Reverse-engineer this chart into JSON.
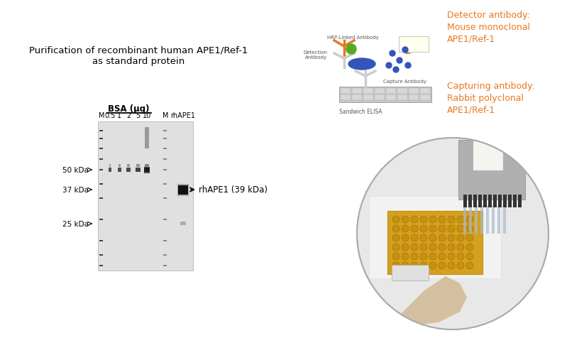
{
  "title_left": "Purification of recombinant human APE1/Ref-1\nas standard protein",
  "title_fontsize": 9.5,
  "gel_label_bsa": "BSA (μg)",
  "gel_lane_labels": [
    "M",
    "0.5",
    "1",
    "2",
    "5",
    "10",
    "M",
    "rhAPE1"
  ],
  "gel_marker_labels": [
    "50 kDa",
    "37 kDa",
    "25 kDa"
  ],
  "rhAPE1_label": "← rhAPE1 (39 kDa)",
  "detector_title": "Detector antibody:",
  "detector_body": "Mouse monoclonal\nAPE1/Ref-1",
  "capturing_title": "Capturing antibody:",
  "capturing_body": "Rabbit polyclonal\nAPE1/Ref-1",
  "orange_color": "#E87722",
  "black": "#000000",
  "white": "#FFFFFF",
  "bg": "#FFFFFF",
  "gray_gel": "#E8E8E8",
  "dark_band": "#2a2a2a",
  "medium_band": "#555555",
  "light_band": "#aaaaaa"
}
